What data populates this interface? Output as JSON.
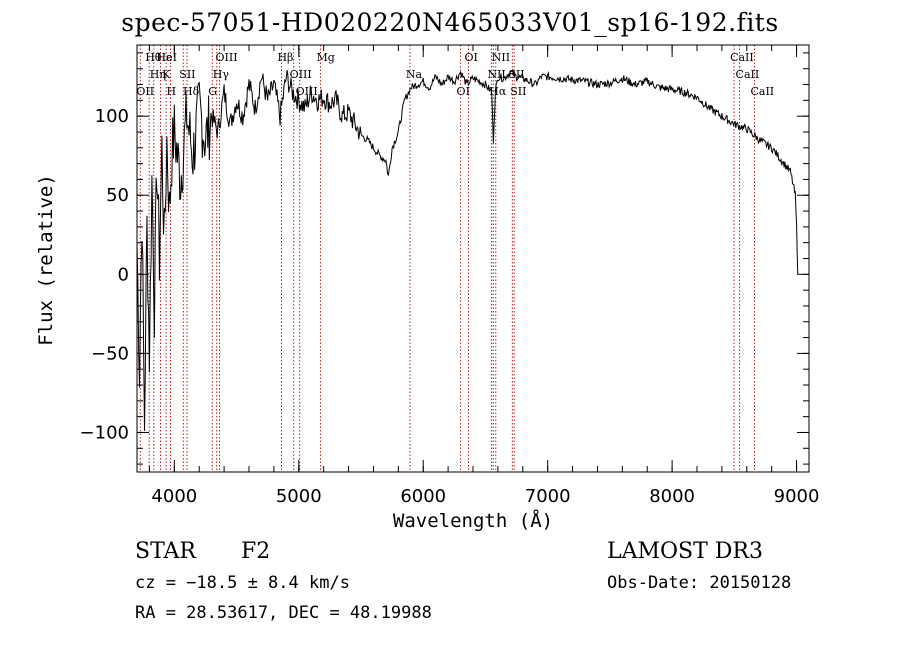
{
  "header": {
    "title": "spec-57051-HD020220N465033V01_sp16-192.fits"
  },
  "info": {
    "object_type": "STAR",
    "subclass": "F2",
    "survey": "LAMOST DR3",
    "redshift": "cz = −18.5 ± 8.4 km/s",
    "obs_date": "Obs-Date: 20150128",
    "coordinates": "RA =  28.53617, DEC =  48.19988"
  },
  "chart_data": {
    "type": "line",
    "title": "spec-57051-HD020220N465033V01_sp16-192.fits",
    "xlabel": "Wavelength (Å)",
    "ylabel": "Flux (relative)",
    "xlim": [
      3700,
      9100
    ],
    "ylim": [
      -125,
      145
    ],
    "xticks": [
      4000,
      5000,
      6000,
      7000,
      8000,
      9000
    ],
    "yticks": [
      -100,
      -50,
      0,
      50,
      100
    ],
    "line_color": "#000000",
    "marker_color": "#b22222",
    "series": [
      {
        "name": "flux",
        "x": [
          3700,
          3720,
          3740,
          3760,
          3780,
          3800,
          3820,
          3840,
          3860,
          3880,
          3900,
          3920,
          3940,
          3960,
          3980,
          4000,
          4050,
          4100,
          4150,
          4200,
          4250,
          4300,
          4350,
          4400,
          4450,
          4500,
          4550,
          4600,
          4650,
          4700,
          4750,
          4800,
          4850,
          4900,
          4950,
          5000,
          5050,
          5100,
          5150,
          5200,
          5250,
          5300,
          5350,
          5400,
          5450,
          5500,
          5550,
          5600,
          5650,
          5700,
          5720,
          5750,
          5800,
          5850,
          5900,
          5950,
          6000,
          6050,
          6100,
          6150,
          6200,
          6250,
          6300,
          6350,
          6400,
          6450,
          6500,
          6550,
          6563,
          6580,
          6600,
          6650,
          6700,
          6750,
          6800,
          6850,
          6900,
          6950,
          7000,
          7100,
          7200,
          7300,
          7400,
          7500,
          7600,
          7700,
          7800,
          7900,
          8000,
          8100,
          8200,
          8300,
          8400,
          8500,
          8600,
          8700,
          8800,
          8850,
          8900,
          8950,
          8990,
          9000,
          9010
        ],
        "values": [
          20,
          -60,
          40,
          -95,
          30,
          -50,
          60,
          -20,
          70,
          10,
          80,
          20,
          85,
          40,
          75,
          90,
          60,
          100,
          75,
          105,
          85,
          100,
          90,
          115,
          95,
          110,
          100,
          120,
          105,
          125,
          110,
          120,
          100,
          125,
          115,
          110,
          105,
          115,
          110,
          112,
          108,
          110,
          100,
          102,
          95,
          88,
          85,
          80,
          75,
          72,
          62,
          80,
          90,
          110,
          118,
          120,
          122,
          118,
          125,
          120,
          125,
          122,
          128,
          120,
          124,
          122,
          120,
          115,
          85,
          115,
          125,
          124,
          128,
          125,
          124,
          122,
          120,
          125,
          125,
          124,
          123,
          122,
          120,
          121,
          124,
          120,
          122,
          118,
          117,
          115,
          112,
          105,
          100,
          95,
          92,
          85,
          80,
          75,
          70,
          65,
          50,
          30,
          0
        ]
      }
    ],
    "lines": [
      {
        "name": "Hθ",
        "wave": 3798
      },
      {
        "name": "Hη",
        "wave": 3835
      },
      {
        "name": "OII",
        "wave": 3727
      },
      {
        "name": "Hε",
        "wave": 3889
      },
      {
        "name": "K",
        "wave": 3934
      },
      {
        "name": "H",
        "wave": 3969
      },
      {
        "name": "HeI",
        "wave": 3889
      },
      {
        "name": "SII",
        "wave": 4072
      },
      {
        "name": "Hδ",
        "wave": 4102
      },
      {
        "name": "OIII",
        "wave": 4363
      },
      {
        "name": "Hγ",
        "wave": 4341
      },
      {
        "name": "G",
        "wave": 4305
      },
      {
        "name": "Hβ",
        "wave": 4861
      },
      {
        "name": "OIII",
        "wave": 4959
      },
      {
        "name": "OIII",
        "wave": 5007
      },
      {
        "name": "Mg",
        "wave": 5175
      },
      {
        "name": "Na",
        "wave": 5893
      },
      {
        "name": "OI",
        "wave": 6300
      },
      {
        "name": "OI",
        "wave": 6364
      },
      {
        "name": "NII",
        "wave": 6548
      },
      {
        "name": "Hα",
        "wave": 6563
      },
      {
        "name": "NII",
        "wave": 6583
      },
      {
        "name": "SII",
        "wave": 6716
      },
      {
        "name": "SII",
        "wave": 6731
      },
      {
        "name": "CaII",
        "wave": 8498
      },
      {
        "name": "CaII",
        "wave": 8542
      },
      {
        "name": "CaII",
        "wave": 8662
      }
    ]
  }
}
